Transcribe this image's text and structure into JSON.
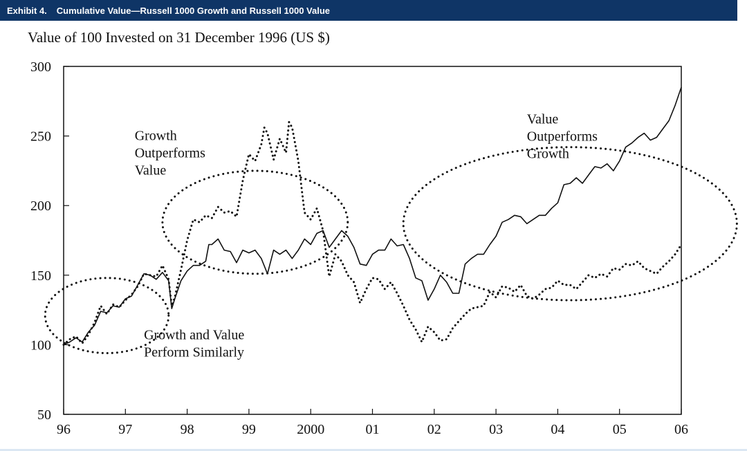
{
  "header": {
    "exhibit": "Exhibit 4.",
    "title": "Cumulative Value—Russell 1000 Growth and Russell 1000 Value"
  },
  "colors": {
    "header_bg": "#0f3566",
    "ink": "#111111"
  },
  "chart_data": {
    "type": "line",
    "title": "Value of 100 Invested on 31 December 1996 (US $)",
    "xlabel": "",
    "ylabel": "",
    "xlim": [
      1996,
      2006
    ],
    "ylim": [
      50,
      300
    ],
    "yticks": [
      50,
      100,
      150,
      200,
      250,
      300
    ],
    "xticks": [
      {
        "value": 1996,
        "label": "96"
      },
      {
        "value": 1997,
        "label": "97"
      },
      {
        "value": 1998,
        "label": "98"
      },
      {
        "value": 1999,
        "label": "99"
      },
      {
        "value": 2000,
        "label": "2000"
      },
      {
        "value": 2001,
        "label": "01"
      },
      {
        "value": 2002,
        "label": "02"
      },
      {
        "value": 2003,
        "label": "03"
      },
      {
        "value": 2004,
        "label": "04"
      },
      {
        "value": 2005,
        "label": "05"
      },
      {
        "value": 2006,
        "label": "06"
      }
    ],
    "series": [
      {
        "name": "Russell 1000 Growth",
        "style": "dotted",
        "points": [
          [
            1996.0,
            100
          ],
          [
            1996.1,
            104
          ],
          [
            1996.2,
            106
          ],
          [
            1996.3,
            101
          ],
          [
            1996.4,
            107
          ],
          [
            1996.5,
            116
          ],
          [
            1996.6,
            128
          ],
          [
            1996.7,
            122
          ],
          [
            1996.8,
            129
          ],
          [
            1996.9,
            127
          ],
          [
            1997.0,
            132
          ],
          [
            1997.1,
            136
          ],
          [
            1997.2,
            142
          ],
          [
            1997.3,
            151
          ],
          [
            1997.4,
            150
          ],
          [
            1997.5,
            149
          ],
          [
            1997.6,
            157
          ],
          [
            1997.7,
            147
          ],
          [
            1997.75,
            128
          ],
          [
            1997.8,
            134
          ],
          [
            1997.9,
            154
          ],
          [
            1998.0,
            175
          ],
          [
            1998.1,
            190
          ],
          [
            1998.2,
            188
          ],
          [
            1998.3,
            193
          ],
          [
            1998.4,
            191
          ],
          [
            1998.5,
            199
          ],
          [
            1998.6,
            195
          ],
          [
            1998.7,
            196
          ],
          [
            1998.8,
            192
          ],
          [
            1998.9,
            218
          ],
          [
            1999.0,
            237
          ],
          [
            1999.1,
            232
          ],
          [
            1999.2,
            244
          ],
          [
            1999.25,
            256
          ],
          [
            1999.3,
            252
          ],
          [
            1999.4,
            233
          ],
          [
            1999.5,
            248
          ],
          [
            1999.6,
            238
          ],
          [
            1999.65,
            260
          ],
          [
            1999.7,
            256
          ],
          [
            1999.8,
            232
          ],
          [
            1999.9,
            195
          ],
          [
            2000.0,
            190
          ],
          [
            2000.1,
            198
          ],
          [
            2000.2,
            182
          ],
          [
            2000.3,
            149
          ],
          [
            2000.4,
            165
          ],
          [
            2000.5,
            160
          ],
          [
            2000.6,
            150
          ],
          [
            2000.7,
            145
          ],
          [
            2000.8,
            130
          ],
          [
            2000.9,
            140
          ],
          [
            2001.0,
            148
          ],
          [
            2001.1,
            147
          ],
          [
            2001.2,
            140
          ],
          [
            2001.3,
            145
          ],
          [
            2001.4,
            137
          ],
          [
            2001.5,
            128
          ],
          [
            2001.6,
            118
          ],
          [
            2001.7,
            111
          ],
          [
            2001.8,
            102
          ],
          [
            2001.9,
            113
          ],
          [
            2002.0,
            109
          ],
          [
            2002.1,
            103
          ],
          [
            2002.2,
            104
          ],
          [
            2002.3,
            112
          ],
          [
            2002.4,
            117
          ],
          [
            2002.5,
            122
          ],
          [
            2002.6,
            126
          ],
          [
            2002.7,
            127
          ],
          [
            2002.8,
            128
          ],
          [
            2002.9,
            138
          ],
          [
            2003.0,
            134
          ],
          [
            2003.1,
            142
          ],
          [
            2003.2,
            141
          ],
          [
            2003.3,
            138
          ],
          [
            2003.4,
            143
          ],
          [
            2003.5,
            135
          ],
          [
            2003.6,
            133
          ],
          [
            2003.7,
            136
          ],
          [
            2003.8,
            140
          ],
          [
            2003.9,
            141
          ],
          [
            2004.0,
            146
          ],
          [
            2004.1,
            143
          ],
          [
            2004.2,
            143
          ],
          [
            2004.3,
            140
          ],
          [
            2004.4,
            145
          ],
          [
            2004.5,
            150
          ],
          [
            2004.6,
            148
          ],
          [
            2004.7,
            151
          ],
          [
            2004.8,
            149
          ],
          [
            2004.9,
            155
          ],
          [
            2005.0,
            154
          ],
          [
            2005.1,
            158
          ],
          [
            2005.2,
            157
          ],
          [
            2005.3,
            160
          ],
          [
            2005.4,
            155
          ],
          [
            2005.5,
            153
          ],
          [
            2005.6,
            151
          ],
          [
            2005.7,
            156
          ],
          [
            2005.8,
            160
          ],
          [
            2005.9,
            165
          ],
          [
            2006.0,
            172
          ]
        ]
      },
      {
        "name": "Russell 1000 Value",
        "style": "solid",
        "points": [
          [
            1996.0,
            100
          ],
          [
            1996.1,
            102
          ],
          [
            1996.2,
            105
          ],
          [
            1996.3,
            102
          ],
          [
            1996.4,
            109
          ],
          [
            1996.5,
            114
          ],
          [
            1996.6,
            124
          ],
          [
            1996.7,
            123
          ],
          [
            1996.8,
            128
          ],
          [
            1996.9,
            127
          ],
          [
            1997.0,
            133
          ],
          [
            1997.1,
            135
          ],
          [
            1997.2,
            143
          ],
          [
            1997.3,
            151
          ],
          [
            1997.4,
            150
          ],
          [
            1997.5,
            147
          ],
          [
            1997.6,
            152
          ],
          [
            1997.7,
            146
          ],
          [
            1997.75,
            126
          ],
          [
            1997.8,
            133
          ],
          [
            1997.9,
            146
          ],
          [
            1998.0,
            153
          ],
          [
            1998.1,
            157
          ],
          [
            1998.2,
            157
          ],
          [
            1998.3,
            160
          ],
          [
            1998.35,
            172
          ],
          [
            1998.4,
            172
          ],
          [
            1998.5,
            176
          ],
          [
            1998.6,
            168
          ],
          [
            1998.7,
            167
          ],
          [
            1998.8,
            159
          ],
          [
            1998.9,
            168
          ],
          [
            1999.0,
            166
          ],
          [
            1999.1,
            168
          ],
          [
            1999.2,
            162
          ],
          [
            1999.3,
            151
          ],
          [
            1999.4,
            168
          ],
          [
            1999.5,
            165
          ],
          [
            1999.6,
            168
          ],
          [
            1999.7,
            162
          ],
          [
            1999.8,
            168
          ],
          [
            1999.9,
            176
          ],
          [
            2000.0,
            172
          ],
          [
            2000.1,
            180
          ],
          [
            2000.2,
            182
          ],
          [
            2000.3,
            170
          ],
          [
            2000.4,
            176
          ],
          [
            2000.5,
            182
          ],
          [
            2000.6,
            178
          ],
          [
            2000.7,
            170
          ],
          [
            2000.8,
            158
          ],
          [
            2000.9,
            157
          ],
          [
            2001.0,
            165
          ],
          [
            2001.1,
            168
          ],
          [
            2001.2,
            168
          ],
          [
            2001.3,
            176
          ],
          [
            2001.4,
            171
          ],
          [
            2001.5,
            172
          ],
          [
            2001.6,
            162
          ],
          [
            2001.7,
            148
          ],
          [
            2001.8,
            146
          ],
          [
            2001.9,
            132
          ],
          [
            2002.0,
            140
          ],
          [
            2002.1,
            150
          ],
          [
            2002.2,
            145
          ],
          [
            2002.3,
            137
          ],
          [
            2002.4,
            137
          ],
          [
            2002.5,
            158
          ],
          [
            2002.6,
            162
          ],
          [
            2002.7,
            165
          ],
          [
            2002.8,
            165
          ],
          [
            2002.9,
            172
          ],
          [
            2003.0,
            178
          ],
          [
            2003.1,
            188
          ],
          [
            2003.2,
            190
          ],
          [
            2003.3,
            193
          ],
          [
            2003.4,
            192
          ],
          [
            2003.5,
            187
          ],
          [
            2003.6,
            190
          ],
          [
            2003.7,
            193
          ],
          [
            2003.8,
            193
          ],
          [
            2003.9,
            198
          ],
          [
            2004.0,
            202
          ],
          [
            2004.1,
            215
          ],
          [
            2004.2,
            216
          ],
          [
            2004.3,
            220
          ],
          [
            2004.4,
            216
          ],
          [
            2004.5,
            222
          ],
          [
            2004.6,
            228
          ],
          [
            2004.7,
            227
          ],
          [
            2004.8,
            230
          ],
          [
            2004.9,
            225
          ],
          [
            2005.0,
            232
          ],
          [
            2005.1,
            242
          ],
          [
            2005.2,
            245
          ],
          [
            2005.3,
            249
          ],
          [
            2005.4,
            252
          ],
          [
            2005.5,
            247
          ],
          [
            2005.6,
            249
          ],
          [
            2005.7,
            255
          ],
          [
            2005.8,
            261
          ],
          [
            2005.9,
            272
          ],
          [
            2006.0,
            285
          ]
        ]
      }
    ],
    "annotations": [
      {
        "id": "growth-outperforms",
        "lines": [
          "Growth",
          "Outperforms",
          "Value"
        ],
        "at": [
          1997.15,
          247
        ]
      },
      {
        "id": "value-outperforms",
        "lines": [
          "Value",
          "Outperforms",
          "Growth"
        ],
        "at": [
          2003.5,
          259
        ]
      },
      {
        "id": "perform-similarly",
        "lines": [
          "Growth and Value",
          "Perform Similarly"
        ],
        "at": [
          1997.3,
          104
        ]
      }
    ],
    "regions": [
      {
        "id": "early-ellipse",
        "center": [
          1996.7,
          121
        ],
        "x_radius": 1.0,
        "y_radius": 27
      },
      {
        "id": "growth-ellipse",
        "center": [
          1999.1,
          188
        ],
        "x_radius": 1.5,
        "y_radius": 37
      },
      {
        "id": "value-ellipse",
        "center": [
          2004.2,
          187
        ],
        "x_radius": 2.7,
        "y_radius": 55
      }
    ]
  }
}
